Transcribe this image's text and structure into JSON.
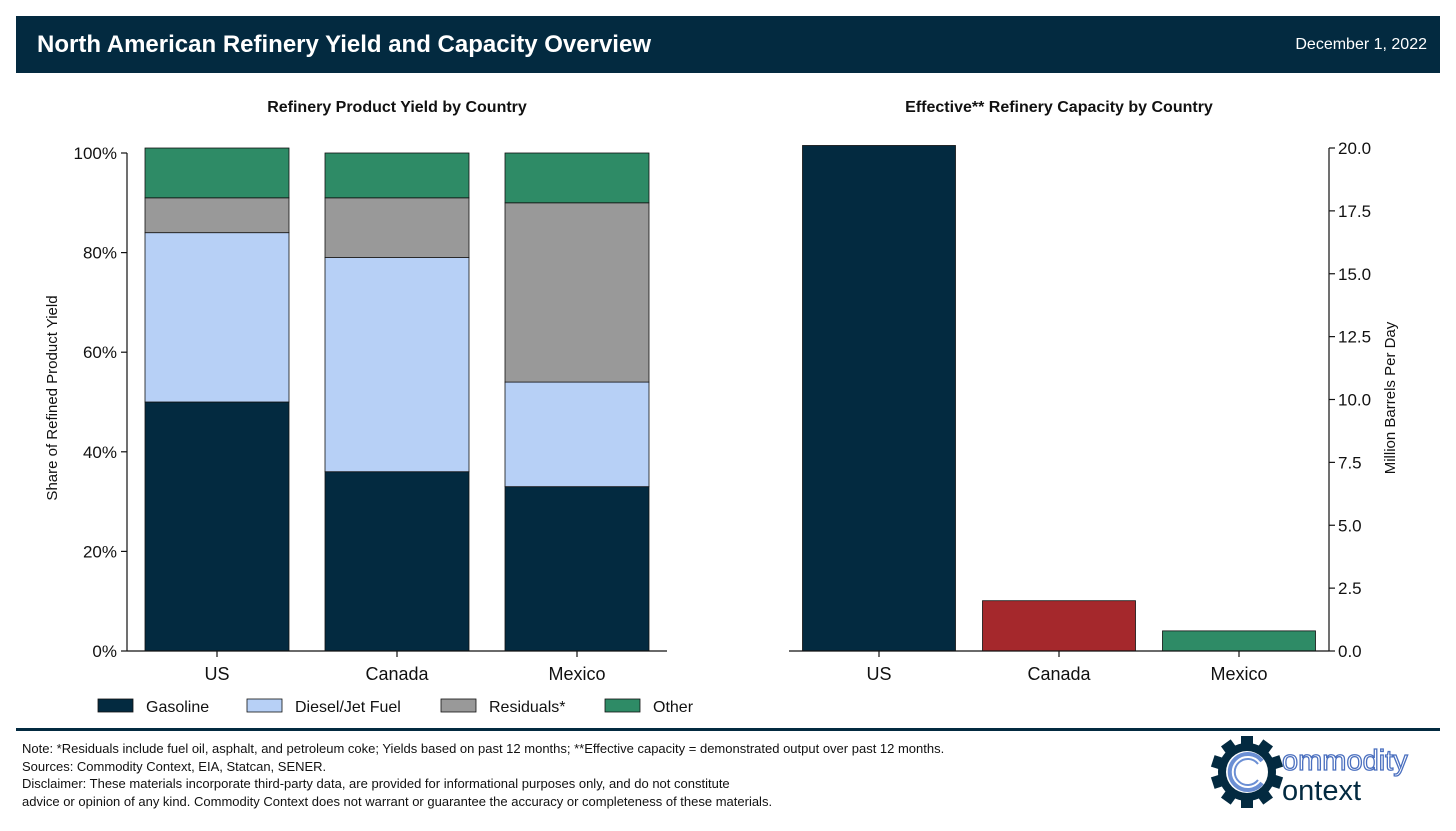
{
  "header": {
    "title": "North American Refinery Yield and Capacity Overview",
    "date": "December 1, 2022"
  },
  "chart_data": [
    {
      "type": "bar",
      "stacked": true,
      "title": "Refinery Product Yield by Country",
      "xlabel": "",
      "ylabel": "Share of Refined Product Yield",
      "categories": [
        "US",
        "Canada",
        "Mexico"
      ],
      "ylim": [
        0,
        100
      ],
      "yticks": [
        "0%",
        "20%",
        "40%",
        "60%",
        "80%",
        "100%"
      ],
      "series": [
        {
          "name": "Gasoline",
          "values": [
            50,
            36,
            33
          ],
          "color": "#032a40"
        },
        {
          "name": "Diesel/Jet Fuel",
          "values": [
            34,
            43,
            21
          ],
          "color": "#b7d0f6"
        },
        {
          "name": "Residuals*",
          "values": [
            7,
            12,
            36
          ],
          "color": "#999999"
        },
        {
          "name": "Other",
          "values": [
            10,
            9,
            10
          ],
          "color": "#2e8b66"
        }
      ],
      "legend": "bottom",
      "grid": false
    },
    {
      "type": "bar",
      "title": "Effective** Refinery Capacity by Country",
      "xlabel": "",
      "ylabel": "Million Barrels Per Day",
      "categories": [
        "US",
        "Canada",
        "Mexico"
      ],
      "values": [
        20.1,
        2.0,
        0.8
      ],
      "colors": [
        "#032a40",
        "#a5282c",
        "#2e8b66"
      ],
      "ylim": [
        0,
        20
      ],
      "yticks": [
        "0.0",
        "2.5",
        "5.0",
        "7.5",
        "10.0",
        "12.5",
        "15.0",
        "17.5",
        "20.0"
      ],
      "yaxis_side": "right",
      "grid": false
    }
  ],
  "footer": {
    "note": "Note: *Residuals include fuel oil, asphalt, and petroleum coke; Yields based on past 12 months; **Effective capacity = demonstrated output over past 12 months.",
    "sources": "Sources: Commodity Context, EIA, Statcan, SENER.",
    "disclaimer_line1": "Disclaimer: These materials incorporate third-party data, are provided for informational purposes only, and do not constitute",
    "disclaimer_line2": "advice or opinion of any kind. Commodity Context does not warrant or guarantee the accuracy or completeness of these materials."
  },
  "logo": {
    "line1": "ommodity",
    "line2": "ontext",
    "icon": "gear-c-icon"
  }
}
